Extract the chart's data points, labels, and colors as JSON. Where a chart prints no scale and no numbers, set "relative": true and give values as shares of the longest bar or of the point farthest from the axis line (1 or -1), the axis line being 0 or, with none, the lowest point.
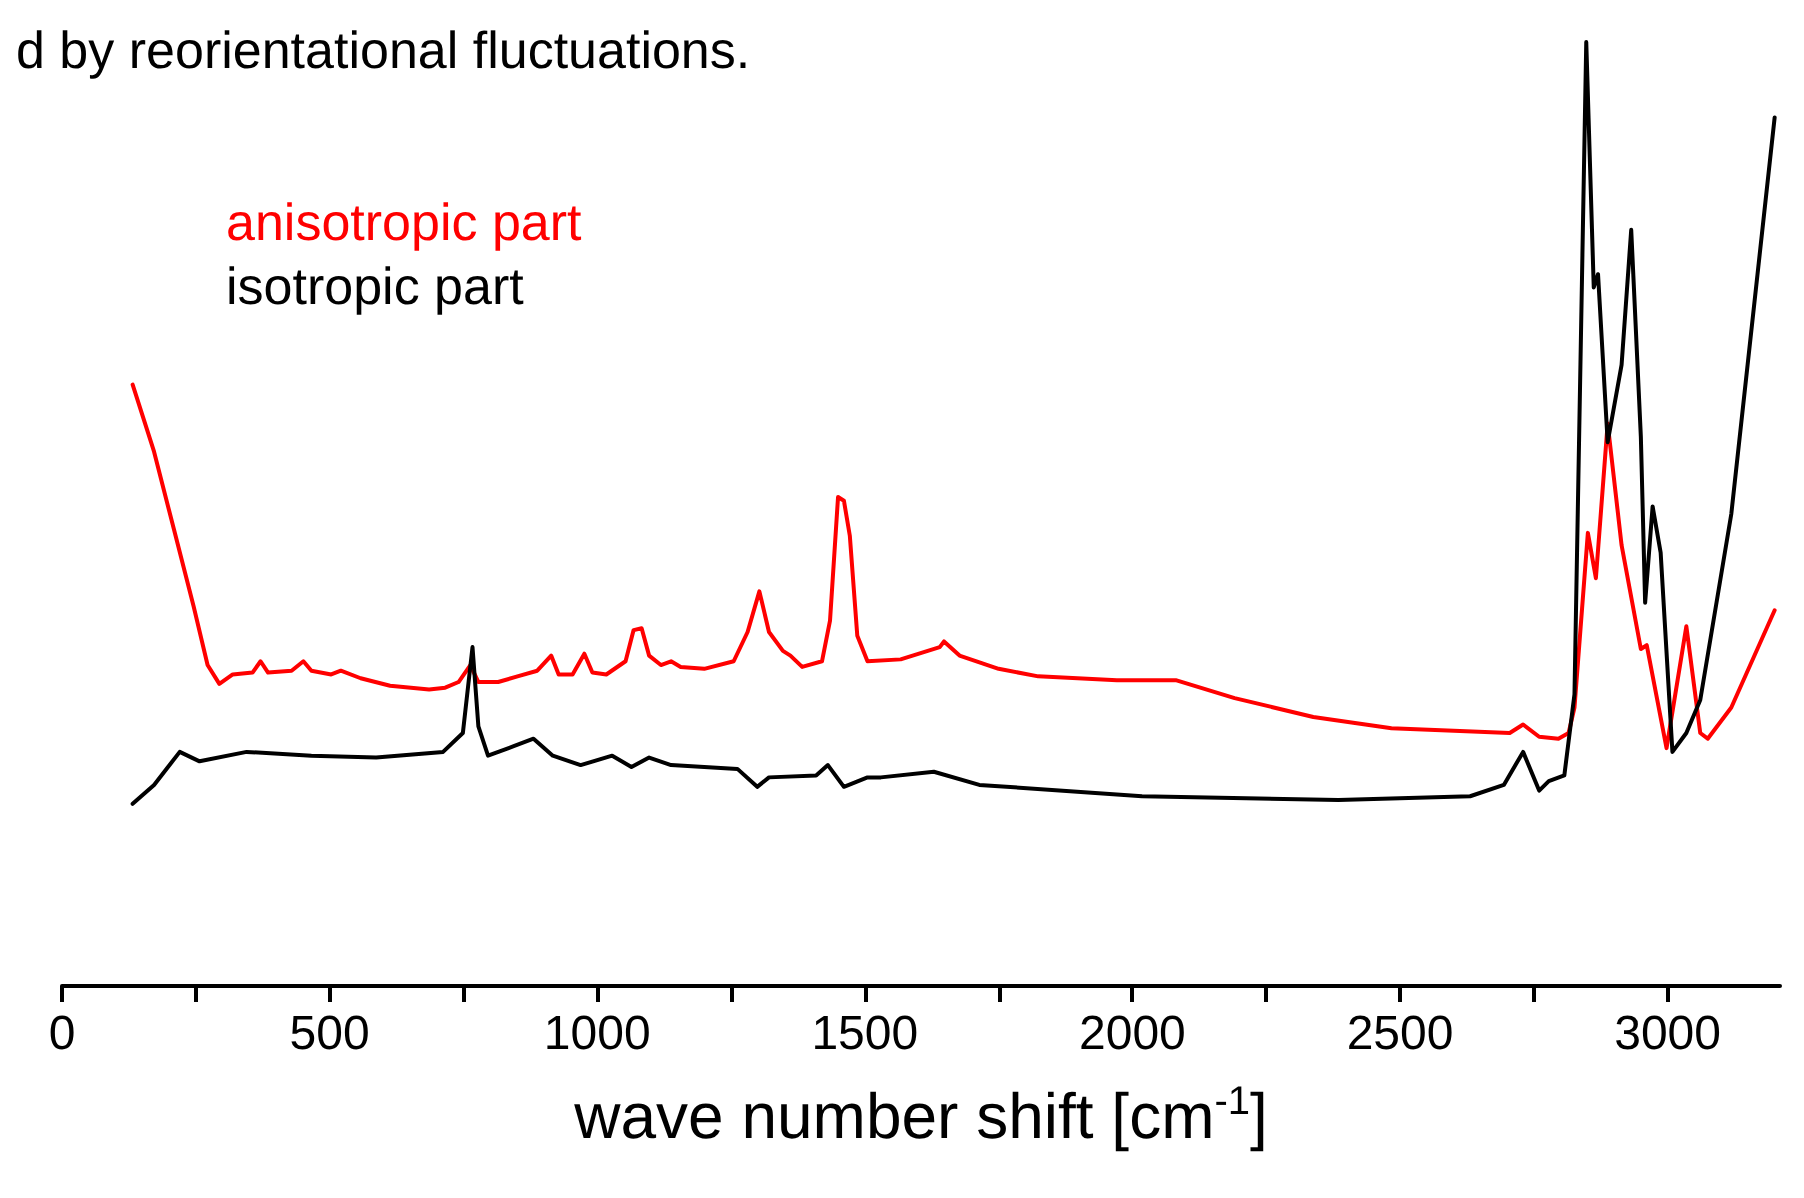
{
  "chart_data": {
    "type": "line",
    "relative": true,
    "xlabel": "wave number shift [cm$^{-1}$]",
    "annotations": [
      "d by reorientational fluctuations."
    ],
    "xlim": [
      0,
      3210
    ],
    "xticks": [
      0,
      {
        "value": 250,
        "label": null
      },
      500,
      {
        "value": 750,
        "label": null
      },
      1000,
      {
        "value": 1250,
        "label": null
      },
      1500,
      {
        "value": 1750,
        "label": null
      },
      2000,
      {
        "value": 2250,
        "label": null
      },
      2500,
      {
        "value": 2750,
        "label": null
      },
      3000
    ],
    "legend": "top left",
    "grid": false,
    "marker": "none",
    "line_style": "solid",
    "series": [
      {
        "name": "anisotropic part",
        "color": "#ff0000",
        "x": [
          132,
          172,
          209,
          246,
          272,
          294,
          319,
          356,
          371,
          385,
          429,
          451,
          466,
          503,
          521,
          558,
          613,
          686,
          716,
          741,
          763,
          778,
          815,
          851,
          888,
          914,
          928,
          954,
          976,
          991,
          1017,
          1053,
          1068,
          1083,
          1097,
          1119,
          1138,
          1156,
          1200,
          1255,
          1281,
          1303,
          1321,
          1347,
          1361,
          1383,
          1420,
          1435,
          1450,
          1461,
          1472,
          1486,
          1505,
          1567,
          1640,
          1648,
          1677,
          1750,
          1824,
          1971,
          2081,
          2191,
          2338,
          2484,
          2705,
          2730,
          2760,
          2796,
          2815,
          2826,
          2851,
          2866,
          2888,
          2914,
          2950,
          2961,
          2998,
          3035,
          3061,
          3075,
          3119,
          3200
        ],
        "values": [
          0.637,
          0.566,
          0.484,
          0.402,
          0.34,
          0.32,
          0.33,
          0.332,
          0.344,
          0.332,
          0.334,
          0.344,
          0.334,
          0.33,
          0.334,
          0.326,
          0.318,
          0.314,
          0.316,
          0.322,
          0.34,
          0.322,
          0.322,
          0.328,
          0.334,
          0.35,
          0.33,
          0.33,
          0.352,
          0.332,
          0.33,
          0.344,
          0.377,
          0.379,
          0.35,
          0.34,
          0.344,
          0.338,
          0.336,
          0.344,
          0.375,
          0.418,
          0.375,
          0.355,
          0.35,
          0.338,
          0.344,
          0.387,
          0.518,
          0.514,
          0.477,
          0.371,
          0.344,
          0.346,
          0.359,
          0.365,
          0.35,
          0.336,
          0.328,
          0.324,
          0.324,
          0.305,
          0.285,
          0.273,
          0.268,
          0.277,
          0.264,
          0.262,
          0.268,
          0.295,
          0.48,
          0.432,
          0.596,
          0.467,
          0.357,
          0.361,
          0.252,
          0.381,
          0.268,
          0.262,
          0.295,
          0.398
        ]
      },
      {
        "name": "isotropic part",
        "color": "#000000",
        "x": [
          132,
          172,
          220,
          257,
          345,
          466,
          587,
          712,
          749,
          767,
          778,
          796,
          844,
          881,
          917,
          969,
          1028,
          1064,
          1097,
          1138,
          1262,
          1299,
          1321,
          1409,
          1431,
          1461,
          1505,
          1530,
          1629,
          1714,
          2018,
          2385,
          2631,
          2694,
          2730,
          2760,
          2778,
          2807,
          2826,
          2848,
          2862,
          2870,
          2888,
          2914,
          2932,
          2950,
          2958,
          2972,
          2987,
          3009,
          3035,
          3061,
          3119,
          3200
        ],
        "values": [
          0.193,
          0.213,
          0.248,
          0.238,
          0.248,
          0.244,
          0.242,
          0.248,
          0.268,
          0.359,
          0.275,
          0.244,
          0.254,
          0.262,
          0.244,
          0.234,
          0.244,
          0.232,
          0.242,
          0.234,
          0.23,
          0.211,
          0.221,
          0.223,
          0.234,
          0.211,
          0.221,
          0.221,
          0.227,
          0.213,
          0.201,
          0.197,
          0.201,
          0.213,
          0.248,
          0.207,
          0.217,
          0.223,
          0.309,
          1,
          0.74,
          0.754,
          0.576,
          0.658,
          0.801,
          0.582,
          0.406,
          0.508,
          0.459,
          0.248,
          0.268,
          0.303,
          0.5,
          0.92
        ]
      }
    ]
  }
}
